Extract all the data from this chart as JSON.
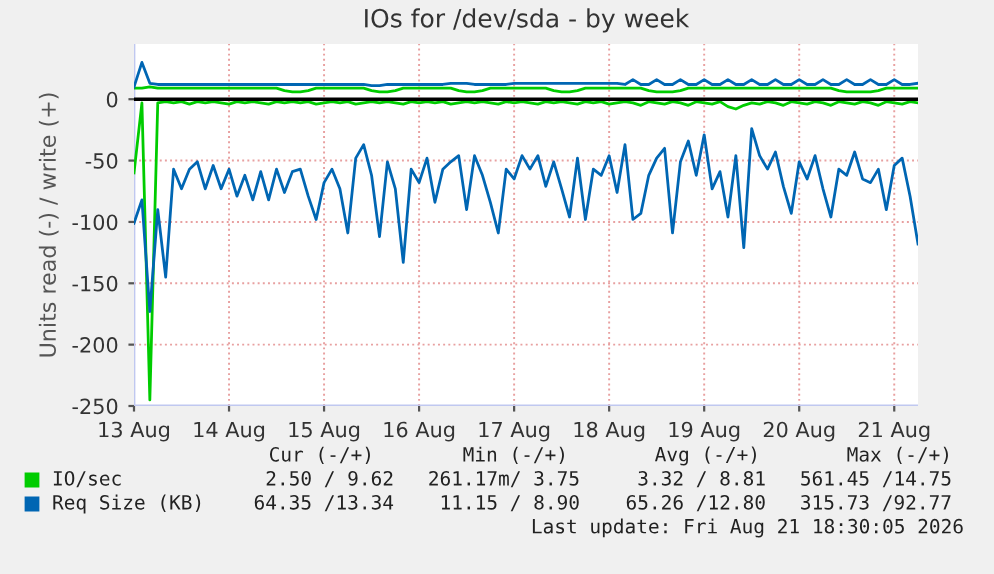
{
  "chart_data": {
    "type": "line",
    "title": "IOs for /dev/sda - by week",
    "ylabel": "Units read (-) / write (+)",
    "x": [
      "2026-08-13T00:00",
      "2026-08-13T02:00",
      "2026-08-13T04:00",
      "2026-08-13T06:00",
      "2026-08-13T08:00",
      "2026-08-13T10:00",
      "2026-08-13T12:00",
      "2026-08-13T14:00",
      "2026-08-13T16:00",
      "2026-08-13T18:00",
      "2026-08-13T20:00",
      "2026-08-13T22:00",
      "2026-08-14T00:00",
      "2026-08-14T02:00",
      "2026-08-14T04:00",
      "2026-08-14T06:00",
      "2026-08-14T08:00",
      "2026-08-14T10:00",
      "2026-08-14T12:00",
      "2026-08-14T14:00",
      "2026-08-14T16:00",
      "2026-08-14T18:00",
      "2026-08-14T20:00",
      "2026-08-14T22:00",
      "2026-08-15T00:00",
      "2026-08-15T02:00",
      "2026-08-15T04:00",
      "2026-08-15T06:00",
      "2026-08-15T08:00",
      "2026-08-15T10:00",
      "2026-08-15T12:00",
      "2026-08-15T14:00",
      "2026-08-15T16:00",
      "2026-08-15T18:00",
      "2026-08-15T20:00",
      "2026-08-15T22:00",
      "2026-08-16T00:00",
      "2026-08-16T02:00",
      "2026-08-16T04:00",
      "2026-08-16T06:00",
      "2026-08-16T08:00",
      "2026-08-16T10:00",
      "2026-08-16T12:00",
      "2026-08-16T14:00",
      "2026-08-16T16:00",
      "2026-08-16T18:00",
      "2026-08-16T20:00",
      "2026-08-16T22:00",
      "2026-08-17T00:00",
      "2026-08-17T02:00",
      "2026-08-17T04:00",
      "2026-08-17T06:00",
      "2026-08-17T08:00",
      "2026-08-17T10:00",
      "2026-08-17T12:00",
      "2026-08-17T14:00",
      "2026-08-17T16:00",
      "2026-08-17T18:00",
      "2026-08-17T20:00",
      "2026-08-17T22:00",
      "2026-08-18T00:00",
      "2026-08-18T02:00",
      "2026-08-18T04:00",
      "2026-08-18T06:00",
      "2026-08-18T08:00",
      "2026-08-18T10:00",
      "2026-08-18T12:00",
      "2026-08-18T14:00",
      "2026-08-18T16:00",
      "2026-08-18T18:00",
      "2026-08-18T20:00",
      "2026-08-18T22:00",
      "2026-08-19T00:00",
      "2026-08-19T02:00",
      "2026-08-19T04:00",
      "2026-08-19T06:00",
      "2026-08-19T08:00",
      "2026-08-19T10:00",
      "2026-08-19T12:00",
      "2026-08-19T14:00",
      "2026-08-19T16:00",
      "2026-08-19T18:00",
      "2026-08-19T20:00",
      "2026-08-19T22:00",
      "2026-08-20T00:00",
      "2026-08-20T02:00",
      "2026-08-20T04:00",
      "2026-08-20T06:00",
      "2026-08-20T08:00",
      "2026-08-20T10:00",
      "2026-08-20T12:00",
      "2026-08-20T14:00",
      "2026-08-20T16:00",
      "2026-08-20T18:00",
      "2026-08-20T20:00",
      "2026-08-20T22:00",
      "2026-08-21T00:00",
      "2026-08-21T02:00",
      "2026-08-21T04:00",
      "2026-08-21T06:00"
    ],
    "series": [
      {
        "name": "IO/sec",
        "color": "#00cc00",
        "values": [
          9,
          9,
          10,
          9,
          9,
          9,
          9,
          9,
          9,
          9,
          9,
          9,
          9,
          9,
          9,
          9,
          9,
          9,
          9,
          7,
          6,
          6,
          7,
          9,
          9,
          9,
          9,
          9,
          9,
          9,
          7,
          6,
          6,
          7,
          9,
          9,
          9,
          9,
          9,
          9,
          9,
          7,
          6,
          6,
          7,
          9,
          9,
          9,
          9,
          9,
          9,
          9,
          9,
          7,
          6,
          6,
          7,
          9,
          9,
          9,
          9,
          9,
          9,
          9,
          9,
          7,
          6,
          6,
          6,
          7,
          9,
          9,
          9,
          9,
          9,
          9,
          9,
          9,
          9,
          9,
          9,
          9,
          9,
          9,
          9,
          9,
          9,
          9,
          9,
          7,
          6,
          6,
          6,
          6,
          7,
          9,
          9,
          9,
          9,
          9
        ]
      },
      {
        "color": "#00cc00",
        "values": [
          -60,
          -3,
          -245,
          -3,
          -2,
          -3,
          -2,
          -4,
          -2,
          -3,
          -2,
          -3,
          -4,
          -2,
          -3,
          -2,
          -3,
          -4,
          -2,
          -3,
          -2,
          -3,
          -2,
          -4,
          -3,
          -2,
          -3,
          -2,
          -4,
          -3,
          -2,
          -3,
          -2,
          -3,
          -4,
          -2,
          -3,
          -2,
          -3,
          -2,
          -4,
          -3,
          -2,
          -3,
          -2,
          -3,
          -4,
          -2,
          -3,
          -2,
          -3,
          -4,
          -2,
          -3,
          -2,
          -3,
          -4,
          -2,
          -3,
          -2,
          -4,
          -3,
          -2,
          -3,
          -5,
          -2,
          -3,
          -4,
          -2,
          -3,
          -5,
          -2,
          -3,
          -4,
          -2,
          -6,
          -8,
          -5,
          -3,
          -4,
          -2,
          -3,
          -5,
          -2,
          -3,
          -4,
          -2,
          -3,
          -5,
          -2,
          -3,
          -4,
          -2,
          -3,
          -5,
          -2,
          -3,
          -4,
          -2,
          -3
        ]
      },
      {
        "name": "Req Size (KB)",
        "color": "#0066b3",
        "values": [
          10,
          30,
          13,
          12,
          12,
          12,
          12,
          12,
          12,
          12,
          12,
          12,
          12,
          12,
          12,
          12,
          12,
          12,
          12,
          12,
          12,
          12,
          12,
          12,
          12,
          12,
          12,
          12,
          12,
          12,
          11,
          11,
          12,
          12,
          12,
          12,
          12,
          12,
          12,
          12,
          13,
          13,
          13,
          12,
          12,
          12,
          12,
          12,
          13,
          13,
          13,
          13,
          13,
          13,
          13,
          13,
          13,
          13,
          13,
          13,
          13,
          13,
          12,
          16,
          12,
          12,
          16,
          12,
          12,
          16,
          12,
          12,
          16,
          12,
          12,
          16,
          12,
          12,
          16,
          12,
          12,
          16,
          12,
          12,
          16,
          12,
          12,
          16,
          12,
          12,
          16,
          12,
          12,
          16,
          12,
          12,
          16,
          12,
          12,
          13
        ]
      },
      {
        "color": "#0066b3",
        "values": [
          -101,
          -82,
          -173,
          -90,
          -145,
          -57,
          -73,
          -57,
          -51,
          -73,
          -54,
          -73,
          -57,
          -79,
          -62,
          -82,
          -59,
          -82,
          -57,
          -76,
          -59,
          -57,
          -79,
          -98,
          -68,
          -57,
          -73,
          -109,
          -48,
          -37,
          -62,
          -112,
          -51,
          -73,
          -133,
          -57,
          -68,
          -48,
          -84,
          -57,
          -51,
          -46,
          -90,
          -46,
          -62,
          -84,
          -109,
          -57,
          -65,
          -46,
          -57,
          -46,
          -71,
          -51,
          -73,
          -96,
          -48,
          -98,
          -57,
          -62,
          -46,
          -76,
          -37,
          -98,
          -93,
          -62,
          -48,
          -40,
          -109,
          -51,
          -34,
          -62,
          -29,
          -73,
          -59,
          -96,
          -46,
          -121,
          -24,
          -46,
          -57,
          -43,
          -71,
          -93,
          -51,
          -65,
          -46,
          -73,
          -96,
          -57,
          -62,
          -43,
          -65,
          -68,
          -57,
          -90,
          -54,
          -48,
          -79,
          -118
        ]
      }
    ],
    "xlim": [
      "2026-08-13T00:00",
      "2026-08-21T06:00"
    ],
    "xticks": [
      {
        "value": "2026-08-13",
        "label": "13 Aug"
      },
      {
        "value": "2026-08-14",
        "label": "14 Aug"
      },
      {
        "value": "2026-08-15",
        "label": "15 Aug"
      },
      {
        "value": "2026-08-16",
        "label": "16 Aug"
      },
      {
        "value": "2026-08-17",
        "label": "17 Aug"
      },
      {
        "value": "2026-08-18",
        "label": "18 Aug"
      },
      {
        "value": "2026-08-19",
        "label": "19 Aug"
      },
      {
        "value": "2026-08-20",
        "label": "20 Aug"
      },
      {
        "value": "2026-08-21",
        "label": "21 Aug"
      }
    ],
    "ylim": [
      -250,
      45
    ],
    "yticks": [
      -250,
      -200,
      -150,
      -100,
      -50,
      0
    ],
    "ref_lines": [
      {
        "axis": "y",
        "value": 0,
        "color": "#000000"
      }
    ],
    "grid": true,
    "legend": "bottom",
    "marker": "none",
    "line_style": "solid",
    "annotations": [
      "Cur (-/+)",
      "Min (-/+)",
      "Avg (-/+)",
      "Max (-/+)",
      "2.50 / 9.62",
      "261.17m/ 3.75",
      "3.32 / 8.81",
      "561.45 /14.75",
      "64.35 /13.34",
      "11.15 / 8.90",
      "65.26 /12.80",
      "315.73 /92.77",
      "Last update: Fri Aug 21 18:30:05 2026"
    ]
  }
}
